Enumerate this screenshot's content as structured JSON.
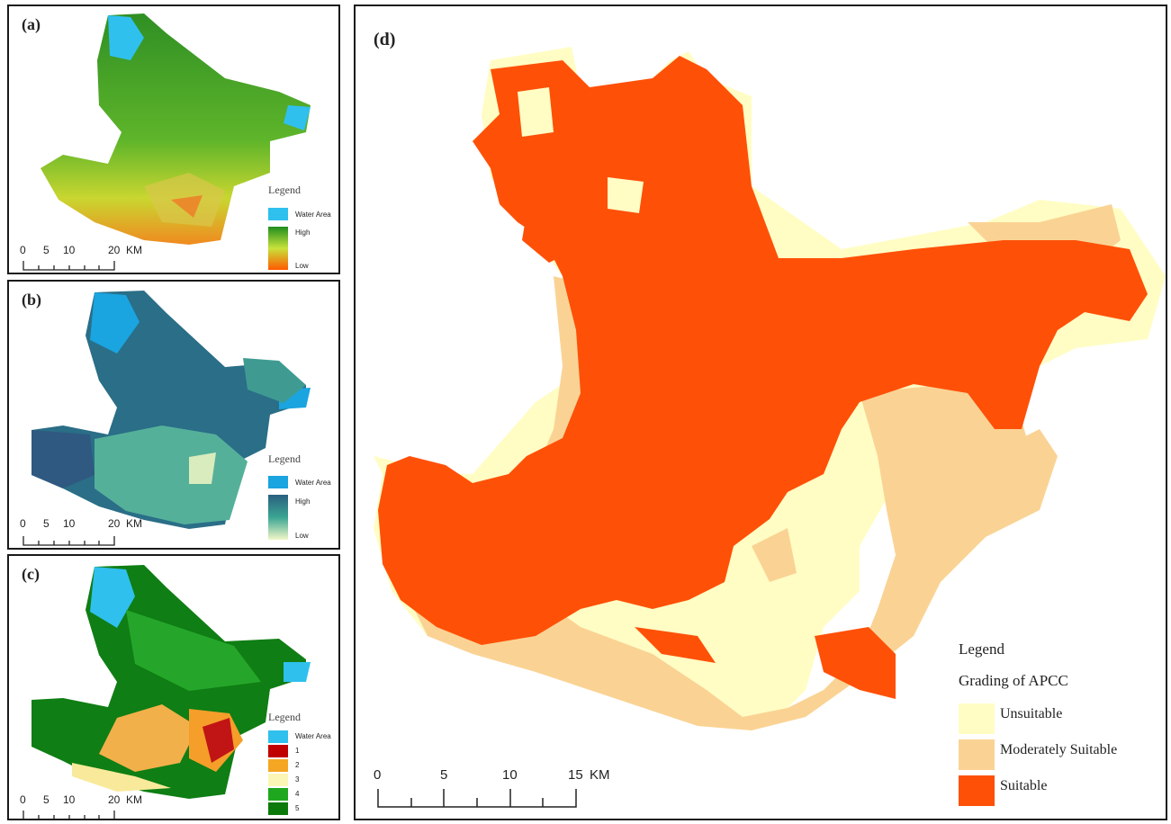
{
  "panels": {
    "a": {
      "label": "(a)",
      "legend_title": "Legend",
      "items": [
        {
          "label": "Water Area",
          "color": "#2fc0ee"
        },
        {
          "label": "High",
          "color": "#1f8e1f"
        },
        {
          "label": "Low",
          "color": "#ff5a00"
        }
      ],
      "scale": [
        "0",
        "5",
        "10",
        "20",
        "KM"
      ]
    },
    "b": {
      "label": "(b)",
      "legend_title": "Legend",
      "items": [
        {
          "label": "Water Area",
          "color": "#1aa4e0"
        },
        {
          "label": "High",
          "color": "#2a5f80"
        },
        {
          "label": "Low",
          "color": "#f2f7c8"
        }
      ],
      "scale": [
        "0",
        "5",
        "10",
        "20",
        "KM"
      ]
    },
    "c": {
      "label": "(c)",
      "legend_title": "Legend",
      "items": [
        {
          "label": "Water Area",
          "color": "#2fc0ee"
        },
        {
          "label": "1",
          "color": "#c00000"
        },
        {
          "label": "2",
          "color": "#f5a623"
        },
        {
          "label": "3",
          "color": "#fbf6b5"
        },
        {
          "label": "4",
          "color": "#1fa81f"
        },
        {
          "label": "5",
          "color": "#0b7a0b"
        }
      ],
      "scale": [
        "0",
        "5",
        "10",
        "20",
        "KM"
      ]
    },
    "d": {
      "label": "(d)",
      "legend_title": "Legend",
      "legend_subtitle": "Grading of APCC",
      "items": [
        {
          "label": "Unsuitable",
          "color": "#fffdc4"
        },
        {
          "label": "Moderately Suitable",
          "color": "#fad394"
        },
        {
          "label": "Suitable",
          "color": "#ff5008"
        }
      ],
      "scale": [
        "0",
        "5",
        "10",
        "15",
        "KM"
      ]
    }
  }
}
